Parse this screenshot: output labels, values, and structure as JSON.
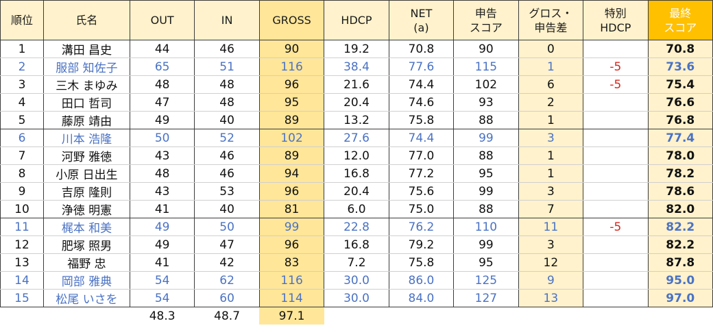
{
  "headers": {
    "rank": "順位",
    "name": "氏名",
    "out": "OUT",
    "in": "IN",
    "gross": "GROSS",
    "hdcp": "HDCP",
    "net_1": "NET",
    "net_2": "(a)",
    "reported_1": "申告",
    "reported_2": "スコア",
    "diff_1": "グロス・",
    "diff_2": "申告差",
    "special_1": "特別",
    "special_2": "HDCP",
    "final_1": "最終",
    "final_2": "スコア"
  },
  "rows": [
    {
      "rank": "1",
      "name": "溝田 昌史",
      "out": "44",
      "in": "46",
      "gross": "90",
      "hdcp": "19.2",
      "net": "70.8",
      "reported": "90",
      "diff": "0",
      "special": "",
      "final": "70.8"
    },
    {
      "rank": "2",
      "name": "服部 知佐子",
      "out": "65",
      "in": "51",
      "gross": "116",
      "hdcp": "38.4",
      "net": "77.6",
      "reported": "115",
      "diff": "1",
      "special": "-5",
      "final": "73.6"
    },
    {
      "rank": "3",
      "name": "三木 まゆみ",
      "out": "48",
      "in": "48",
      "gross": "96",
      "hdcp": "21.6",
      "net": "74.4",
      "reported": "102",
      "diff": "6",
      "special": "-5",
      "final": "75.4"
    },
    {
      "rank": "4",
      "name": "田口 哲司",
      "out": "47",
      "in": "48",
      "gross": "95",
      "hdcp": "20.4",
      "net": "74.6",
      "reported": "93",
      "diff": "2",
      "special": "",
      "final": "76.6"
    },
    {
      "rank": "5",
      "name": "藤原 靖由",
      "out": "49",
      "in": "40",
      "gross": "89",
      "hdcp": "13.2",
      "net": "75.8",
      "reported": "88",
      "diff": "1",
      "special": "",
      "final": "76.8"
    },
    {
      "rank": "6",
      "name": "川本 浩隆",
      "out": "50",
      "in": "52",
      "gross": "102",
      "hdcp": "27.6",
      "net": "74.4",
      "reported": "99",
      "diff": "3",
      "special": "",
      "final": "77.4"
    },
    {
      "rank": "7",
      "name": "河野 雅徳",
      "out": "43",
      "in": "46",
      "gross": "89",
      "hdcp": "12.0",
      "net": "77.0",
      "reported": "88",
      "diff": "1",
      "special": "",
      "final": "78.0"
    },
    {
      "rank": "8",
      "name": "小原 日出生",
      "out": "48",
      "in": "46",
      "gross": "94",
      "hdcp": "16.8",
      "net": "77.2",
      "reported": "95",
      "diff": "1",
      "special": "",
      "final": "78.2"
    },
    {
      "rank": "9",
      "name": "吉原 隆則",
      "out": "43",
      "in": "53",
      "gross": "96",
      "hdcp": "20.4",
      "net": "75.6",
      "reported": "99",
      "diff": "3",
      "special": "",
      "final": "78.6"
    },
    {
      "rank": "10",
      "name": "浄徳 明憲",
      "out": "41",
      "in": "40",
      "gross": "81",
      "hdcp": "6.0",
      "net": "75.0",
      "reported": "88",
      "diff": "7",
      "special": "",
      "final": "82.0"
    },
    {
      "rank": "11",
      "name": "梶本 和美",
      "out": "49",
      "in": "50",
      "gross": "99",
      "hdcp": "22.8",
      "net": "76.2",
      "reported": "110",
      "diff": "11",
      "special": "-5",
      "final": "82.2"
    },
    {
      "rank": "12",
      "name": "肥塚 照男",
      "out": "49",
      "in": "47",
      "gross": "96",
      "hdcp": "16.8",
      "net": "79.2",
      "reported": "99",
      "diff": "3",
      "special": "",
      "final": "82.2"
    },
    {
      "rank": "13",
      "name": "福野 忠",
      "out": "41",
      "in": "42",
      "gross": "83",
      "hdcp": "7.2",
      "net": "75.8",
      "reported": "95",
      "diff": "12",
      "special": "",
      "final": "87.8"
    },
    {
      "rank": "14",
      "name": "岡部 雅典",
      "out": "54",
      "in": "62",
      "gross": "116",
      "hdcp": "30.0",
      "net": "86.0",
      "reported": "125",
      "diff": "9",
      "special": "",
      "final": "95.0"
    },
    {
      "rank": "15",
      "name": "松尾 いさを",
      "out": "54",
      "in": "60",
      "gross": "114",
      "hdcp": "30.0",
      "net": "84.0",
      "reported": "127",
      "diff": "13",
      "special": "",
      "final": "97.0"
    }
  ],
  "averages": {
    "out": "48.3",
    "in": "48.7",
    "gross": "97.1"
  },
  "colors": {
    "header_light": "#fff2cc",
    "gross_column": "#ffe699",
    "final_header": "#ffc000",
    "blue_text": "#4a72c4",
    "red_text": "#d9261c"
  }
}
